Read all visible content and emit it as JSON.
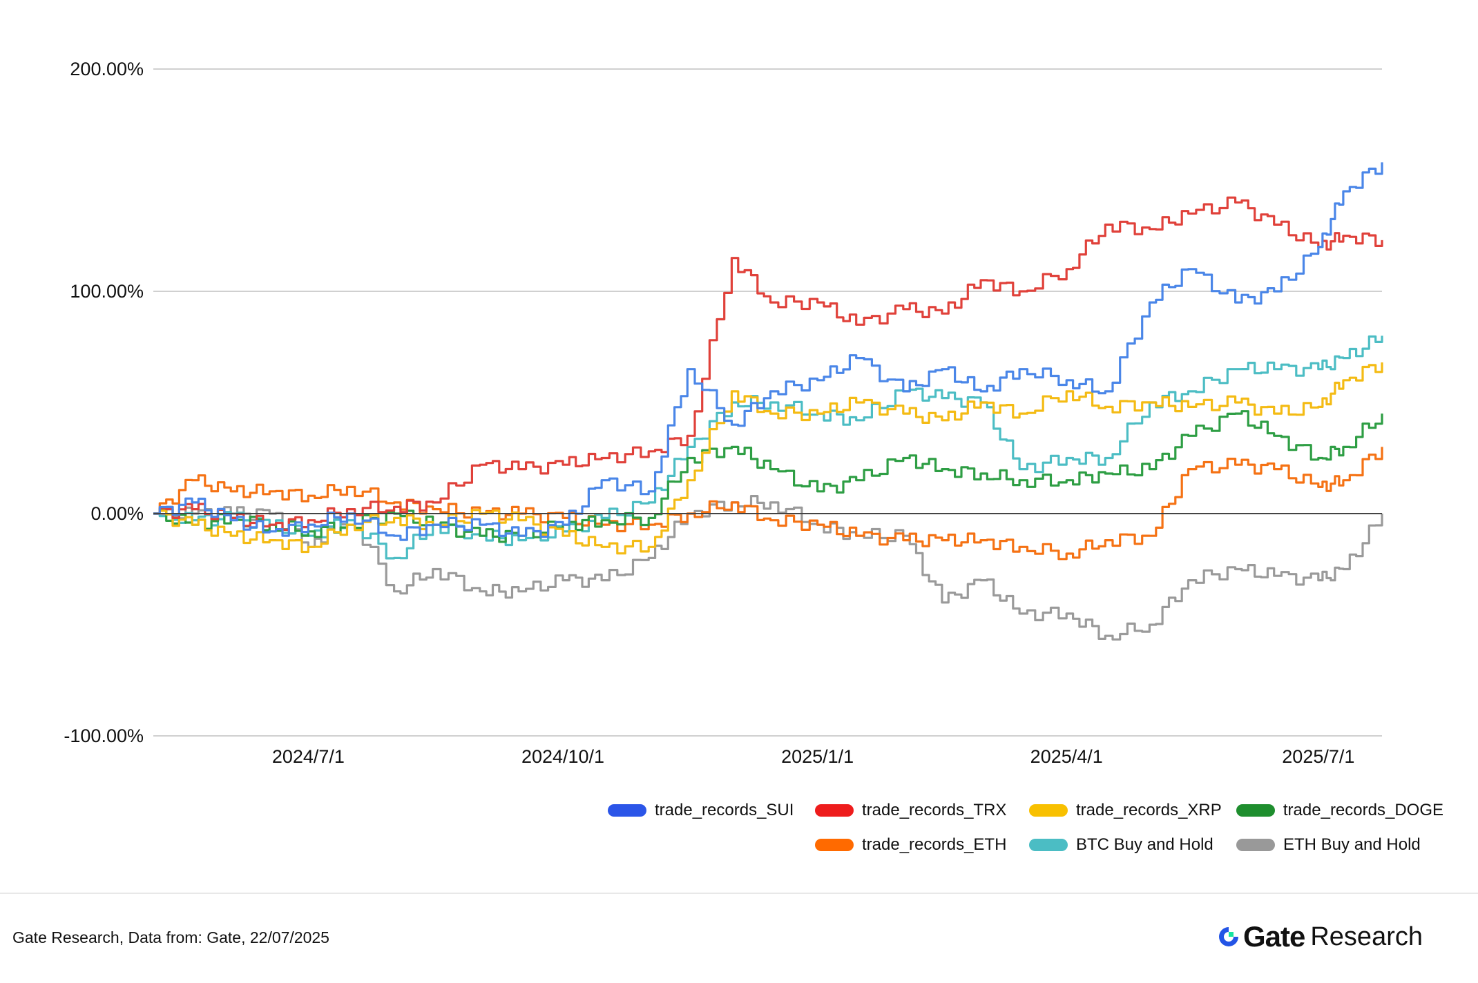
{
  "chart_data": {
    "type": "line",
    "title": "",
    "xlabel": "",
    "ylabel": "",
    "ylim": [
      -100,
      200
    ],
    "yticks": [
      "200.00%",
      "100.00%",
      "0.00%",
      "-100.00%"
    ],
    "ytick_values": [
      200,
      100,
      0,
      -100
    ],
    "xlim": [
      "2024-05-06",
      "2025-07-24"
    ],
    "xticks": [
      "2024/7/1",
      "2024/10/1",
      "2025/1/1",
      "2025/4/1",
      "2025/7/1"
    ],
    "xtick_dates": [
      "2024-07-01",
      "2024-10-01",
      "2025-01-01",
      "2025-04-01",
      "2025-07-01"
    ],
    "grid": true,
    "legend_position": "bottom-right",
    "x": [
      "2024-05-06",
      "2024-05-20",
      "2024-06-03",
      "2024-06-17",
      "2024-07-01",
      "2024-07-15",
      "2024-08-01",
      "2024-08-15",
      "2024-09-01",
      "2024-09-15",
      "2024-10-01",
      "2024-10-15",
      "2024-11-01",
      "2024-11-15",
      "2024-12-01",
      "2024-12-15",
      "2025-01-01",
      "2025-01-15",
      "2025-02-01",
      "2025-02-15",
      "2025-03-01",
      "2025-03-15",
      "2025-04-01",
      "2025-04-15",
      "2025-05-01",
      "2025-05-15",
      "2025-06-01",
      "2025-06-15",
      "2025-07-01",
      "2025-07-10",
      "2025-07-24"
    ],
    "series": [
      {
        "name": "trade_records_SUI",
        "color": "#4a86e8",
        "swatch": "#2b55e8",
        "values": [
          0,
          5,
          -3,
          -8,
          -5,
          0,
          -10,
          -5,
          -5,
          -10,
          -5,
          15,
          10,
          65,
          40,
          55,
          60,
          70,
          55,
          65,
          55,
          65,
          60,
          55,
          95,
          110,
          95,
          100,
          120,
          145,
          158
        ]
      },
      {
        "name": "trade_records_TRX",
        "color": "#e0413a",
        "swatch": "#ee1c1c",
        "values": [
          0,
          2,
          -2,
          -5,
          -3,
          2,
          3,
          5,
          22,
          20,
          22,
          25,
          28,
          35,
          115,
          95,
          95,
          85,
          92,
          90,
          105,
          100,
          110,
          130,
          128,
          135,
          140,
          130,
          120,
          125,
          123
        ]
      },
      {
        "name": "trade_records_XRP",
        "color": "#f4bb14",
        "swatch": "#f8c000",
        "values": [
          0,
          -5,
          -10,
          -12,
          -15,
          -5,
          -2,
          -5,
          0,
          -3,
          -10,
          -15,
          -15,
          15,
          55,
          45,
          45,
          50,
          45,
          42,
          50,
          45,
          55,
          48,
          50,
          48,
          50,
          45,
          48,
          60,
          68
        ]
      },
      {
        "name": "trade_records_DOGE",
        "color": "#2e9e44",
        "swatch": "#1e8e2e",
        "values": [
          0,
          -5,
          -2,
          -5,
          -8,
          -5,
          0,
          -5,
          -10,
          -10,
          -5,
          -3,
          -2,
          25,
          30,
          20,
          10,
          15,
          25,
          20,
          18,
          15,
          15,
          18,
          20,
          35,
          45,
          35,
          25,
          30,
          45
        ]
      },
      {
        "name": "trade_records_ETH",
        "color": "#f57214",
        "swatch": "#ff6a00",
        "values": [
          0,
          15,
          10,
          10,
          8,
          12,
          5,
          2,
          0,
          0,
          -2,
          -5,
          -5,
          0,
          5,
          -3,
          -5,
          -10,
          -12,
          -12,
          -12,
          -15,
          -18,
          -12,
          -10,
          20,
          22,
          20,
          12,
          15,
          30
        ]
      },
      {
        "name": "BTC Buy and Hold",
        "color": "#4cbdc4",
        "swatch": "#4bbdc4",
        "values": [
          0,
          -3,
          -2,
          -5,
          -10,
          -3,
          -20,
          -5,
          -10,
          -12,
          -8,
          -2,
          5,
          30,
          50,
          50,
          45,
          42,
          55,
          52,
          50,
          20,
          25,
          25,
          50,
          55,
          65,
          65,
          65,
          70,
          80
        ]
      },
      {
        "name": "ETH Buy and Hold",
        "color": "#9a9a9a",
        "swatch": "#999999",
        "values": [
          0,
          0,
          0,
          0,
          -15,
          0,
          -35,
          -25,
          -35,
          -35,
          -30,
          -30,
          -20,
          0,
          5,
          5,
          -5,
          -10,
          -10,
          -40,
          -30,
          -45,
          -45,
          -55,
          -50,
          -30,
          -25,
          -28,
          -30,
          -25,
          0
        ]
      }
    ]
  },
  "footer": {
    "source": "Gate Research, Data from: Gate, 22/07/2025",
    "logo_text": "Gate",
    "logo_suffix": "Research"
  }
}
